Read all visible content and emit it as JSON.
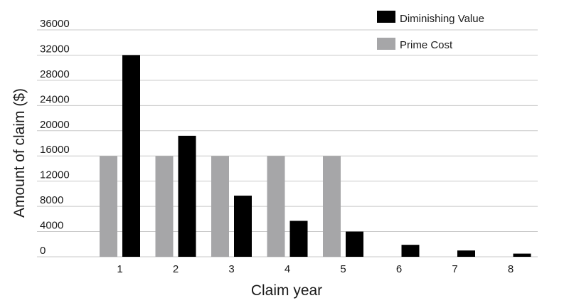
{
  "chart_data": {
    "type": "bar",
    "title": "",
    "xlabel": "Claim year",
    "ylabel": "Amount of claim ($)",
    "categories": [
      "1",
      "2",
      "3",
      "4",
      "5",
      "6",
      "7",
      "8"
    ],
    "y_ticks": [
      "0",
      "4000",
      "8000",
      "12000",
      "16000",
      "20000",
      "24000",
      "28000",
      "32000",
      "36000"
    ],
    "ylim": [
      0,
      36000
    ],
    "grid": true,
    "legend_position": "top-right",
    "series": [
      {
        "name": "Prime Cost",
        "color": "#a6a6a8",
        "values": [
          16000,
          16000,
          16000,
          16000,
          16000,
          0,
          0,
          0
        ]
      },
      {
        "name": "Diminishing Value",
        "color": "#000000",
        "values": [
          32000,
          19200,
          9700,
          5700,
          4000,
          1900,
          1000,
          500
        ]
      }
    ]
  }
}
